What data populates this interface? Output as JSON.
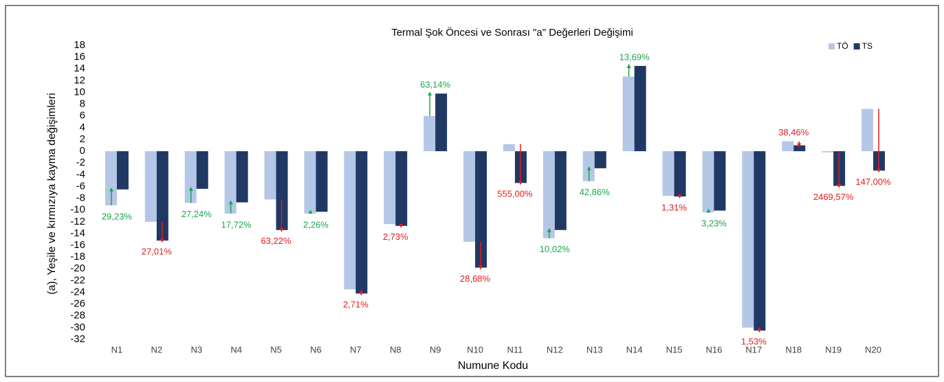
{
  "chart_data": {
    "type": "bar",
    "title": "Termal Şok Öncesi ve Sonrası \"a\" Değerleri Değişimi",
    "x_label": "Numune Kodu",
    "y_label": "(a), Yeşile ve kırmızıya kayma değişimleri",
    "categories": [
      "N1",
      "N2",
      "N3",
      "N4",
      "N5",
      "N6",
      "N7",
      "N8",
      "N9",
      "N10",
      "N11",
      "N12",
      "N13",
      "N14",
      "N15",
      "N16",
      "N17",
      "N18",
      "N19",
      "N20"
    ],
    "series": [
      {
        "name": "TÖ",
        "color": "#b4c7e7",
        "values": [
          -9.2,
          -12,
          -8.8,
          -10.6,
          -8.2,
          -10.6,
          -23.5,
          -12.4,
          6.0,
          -15.4,
          1.2,
          -14.8,
          -5.1,
          12.7,
          -7.6,
          -10.4,
          -30.0,
          1.7,
          -0.2,
          7.2
        ]
      },
      {
        "name": "TS",
        "color": "#203864",
        "values": [
          -6.5,
          -15.2,
          -6.4,
          -8.7,
          -13.4,
          -10.3,
          -24.2,
          -12.7,
          9.8,
          -19.8,
          -5.4,
          -13.4,
          -2.9,
          14.5,
          -7.7,
          -10.1,
          -30.5,
          1.0,
          -5.9,
          -3.3
        ]
      }
    ],
    "annotations": [
      {
        "text": "29,23%",
        "color": "#1aa64b"
      },
      {
        "text": "27,01%",
        "color": "#e31b1b"
      },
      {
        "text": "27,24%",
        "color": "#1aa64b"
      },
      {
        "text": "17,72%",
        "color": "#1aa64b"
      },
      {
        "text": "63,22%",
        "color": "#e31b1b"
      },
      {
        "text": "2,26%",
        "color": "#1aa64b"
      },
      {
        "text": "2,71%",
        "color": "#e31b1b"
      },
      {
        "text": "2,73%",
        "color": "#e31b1b"
      },
      {
        "text": "63,14%",
        "color": "#1aa64b"
      },
      {
        "text": "28,68%",
        "color": "#e31b1b"
      },
      {
        "text": "555,00%",
        "color": "#e31b1b"
      },
      {
        "text": "10,02%",
        "color": "#1aa64b"
      },
      {
        "text": "42,86%",
        "color": "#1aa64b"
      },
      {
        "text": "13,69%",
        "color": "#1aa64b"
      },
      {
        "text": "1,31%",
        "color": "#e31b1b"
      },
      {
        "text": "3,23%",
        "color": "#1aa64b"
      },
      {
        "text": "1,53%",
        "color": "#e31b1b"
      },
      {
        "text": "38,46%",
        "color": "#e31b1b"
      },
      {
        "text": "2469,57%",
        "color": "#e31b1b"
      },
      {
        "text": "147,00%",
        "color": "#e31b1b"
      }
    ],
    "ylim": [
      -32,
      18
    ],
    "yticks": [
      18,
      16,
      14,
      12,
      10,
      8,
      6,
      4,
      2,
      0,
      -2,
      -4,
      -6,
      -8,
      -10,
      -12,
      -14,
      -16,
      -18,
      -20,
      -22,
      -24,
      -26,
      -28,
      -30,
      -32
    ],
    "legend": "top-right"
  }
}
